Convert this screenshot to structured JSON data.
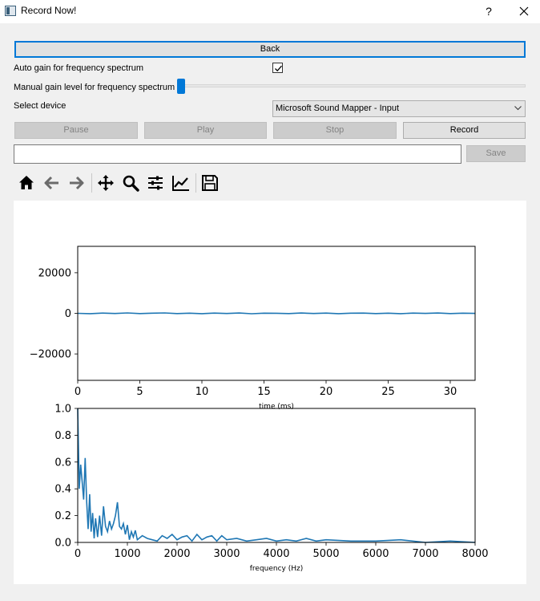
{
  "window": {
    "title": "Record Now!",
    "help": "?"
  },
  "controls": {
    "back_label": "Back",
    "auto_gain_label": "Auto gain for frequency spectrum",
    "auto_gain_checked": true,
    "manual_gain_label": "Manual gain level for frequency spectrum",
    "manual_gain_value": 0,
    "select_device_label": "Select device",
    "device_selected": "Microsoft Sound Mapper - Input",
    "pause_label": "Pause",
    "play_label": "Play",
    "stop_label": "Stop",
    "record_label": "Record",
    "filename_value": "",
    "save_label": "Save"
  },
  "toolbar": {
    "icons": [
      "home-icon",
      "back-arrow-icon",
      "forward-arrow-icon",
      "pan-icon",
      "zoom-icon",
      "configure-subplots-icon",
      "edit-axes-icon",
      "save-figure-icon"
    ]
  },
  "accent_color": "#0078d7",
  "line_color": "#1f77b4",
  "chart_data": [
    {
      "type": "line",
      "xlabel": "time (ms)",
      "ylabel": "",
      "xlim": [
        0,
        32
      ],
      "ylim": [
        -33000,
        33000
      ],
      "xticks": [
        0,
        5,
        10,
        15,
        20,
        25,
        30
      ],
      "yticks": [
        -20000,
        0,
        20000
      ],
      "ytick_labels": [
        "−20000",
        "0",
        "20000"
      ],
      "x": [
        0,
        1,
        2,
        3,
        4,
        5,
        6,
        7,
        8,
        9,
        10,
        11,
        12,
        13,
        14,
        15,
        16,
        17,
        18,
        19,
        20,
        21,
        22,
        23,
        24,
        25,
        26,
        27,
        28,
        29,
        30,
        31,
        32
      ],
      "y": [
        0,
        -150,
        100,
        -80,
        200,
        -120,
        60,
        180,
        -100,
        90,
        -160,
        120,
        -60,
        140,
        -180,
        80,
        40,
        -120,
        160,
        -90,
        110,
        -140,
        70,
        130,
        -110,
        60,
        -170,
        100,
        -50,
        150,
        -130,
        90,
        -40
      ]
    },
    {
      "type": "line",
      "xlabel": "frequency (Hz)",
      "ylabel": "",
      "xlim": [
        0,
        8000
      ],
      "ylim": [
        0,
        1.0
      ],
      "xticks": [
        0,
        1000,
        2000,
        3000,
        4000,
        5000,
        6000,
        7000,
        8000
      ],
      "yticks": [
        0.0,
        0.2,
        0.4,
        0.6,
        0.8,
        1.0
      ],
      "ytick_labels": [
        "0.0",
        "0.2",
        "0.4",
        "0.6",
        "0.8",
        "1.0"
      ],
      "x": [
        0,
        30,
        60,
        90,
        120,
        150,
        180,
        210,
        240,
        270,
        300,
        330,
        360,
        400,
        440,
        480,
        520,
        560,
        600,
        640,
        680,
        720,
        760,
        800,
        840,
        880,
        920,
        960,
        1000,
        1040,
        1080,
        1120,
        1160,
        1200,
        1300,
        1400,
        1500,
        1600,
        1700,
        1800,
        1900,
        2000,
        2100,
        2200,
        2300,
        2400,
        2500,
        2600,
        2700,
        2800,
        2900,
        3000,
        3200,
        3400,
        3600,
        3800,
        4000,
        4200,
        4400,
        4600,
        4800,
        5000,
        5500,
        6000,
        6500,
        7000,
        7500,
        8000
      ],
      "y": [
        1.0,
        0.4,
        0.58,
        0.45,
        0.32,
        0.63,
        0.3,
        0.1,
        0.36,
        0.08,
        0.22,
        0.03,
        0.18,
        0.04,
        0.2,
        0.05,
        0.27,
        0.12,
        0.08,
        0.16,
        0.1,
        0.14,
        0.2,
        0.3,
        0.12,
        0.1,
        0.14,
        0.06,
        0.13,
        0.02,
        0.08,
        0.04,
        0.09,
        0.02,
        0.05,
        0.03,
        0.02,
        0.01,
        0.05,
        0.03,
        0.06,
        0.02,
        0.04,
        0.05,
        0.01,
        0.06,
        0.02,
        0.04,
        0.05,
        0.01,
        0.05,
        0.02,
        0.03,
        0.01,
        0.02,
        0.03,
        0.01,
        0.02,
        0.01,
        0.03,
        0.01,
        0.02,
        0.01,
        0.01,
        0.02,
        0.0,
        0.01,
        0.0
      ]
    }
  ]
}
